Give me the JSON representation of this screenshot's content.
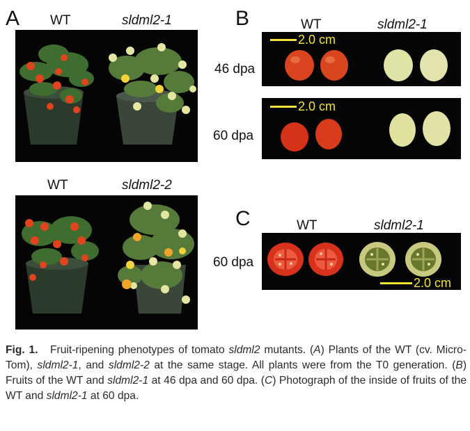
{
  "panelA": {
    "letter": "A",
    "top": {
      "wt": "WT",
      "mutant": "sldml2-1"
    },
    "bottom": {
      "wt": "WT",
      "mutant": "sldml2-2"
    }
  },
  "panelB": {
    "letter": "B",
    "wt": "WT",
    "mutant": "sldml2-1",
    "row1": {
      "stage": "46 dpa",
      "scale": "2.0 cm"
    },
    "row2": {
      "stage": "60 dpa",
      "scale": "2.0 cm"
    }
  },
  "panelC": {
    "letter": "C",
    "wt": "WT",
    "mutant": "sldml2-1",
    "stage": "60 dpa",
    "scale": "2.0 cm"
  },
  "caption": {
    "fig": "Fig. 1.",
    "t1": "Fruit-ripening phenotypes of tomato ",
    "i1": "sldml2",
    "t2": " mutants. (",
    "i2": "A",
    "t3": ") Plants of the WT (cv. Micro-Tom), ",
    "i3": "sldml2-1",
    "t4": ", and ",
    "i4": "sldml2-2",
    "t5": " at the same stage. All plants were from the T0 generation. (",
    "i5": "B",
    "t6": ") Fruits of the WT and ",
    "i6": "sldml2-1",
    "t7": " at 46 dpa and 60 dpa. (",
    "i7": "C",
    "t8": ") Photograph of the inside of fruits of the WT and ",
    "i8": "sldml2-1",
    "t9": " at 60 dpa."
  },
  "colors": {
    "scale_bar": "#f2e33a",
    "wt_fruit": "#d9431f",
    "mutant_fruit": "#dfe3a6"
  }
}
